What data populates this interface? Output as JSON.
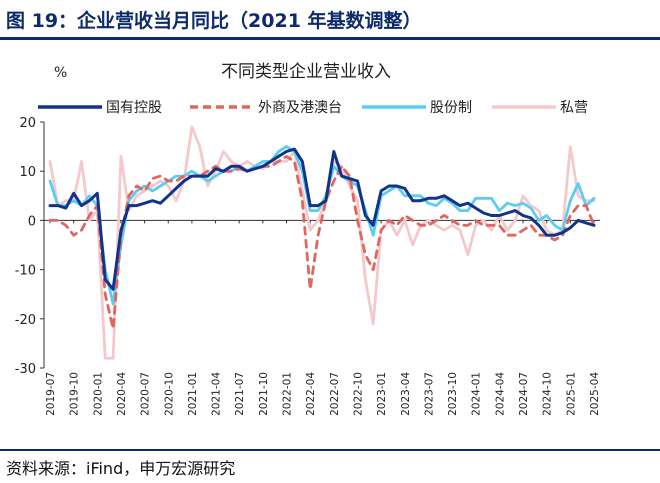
{
  "header": {
    "title": "图 19：企业营收当月同比（2021 年基数调整）"
  },
  "footer": {
    "source": "资料来源：iFind，申万宏源研究"
  },
  "chart_data": {
    "type": "line",
    "title": "不同类型企业营业收入",
    "ylabel": "%",
    "ylim": [
      -30,
      20
    ],
    "yticks": [
      20,
      10,
      0,
      -10,
      -20,
      -30
    ],
    "grid": false,
    "legend_position": "top",
    "x": [
      "2019-07",
      "2019-08",
      "2019-09",
      "2019-10",
      "2019-11",
      "2019-12",
      "2020-01",
      "2020-02",
      "2020-03",
      "2020-04",
      "2020-05",
      "2020-06",
      "2020-07",
      "2020-08",
      "2020-09",
      "2020-10",
      "2020-11",
      "2020-12",
      "2021-01",
      "2021-02",
      "2021-03",
      "2021-04",
      "2021-05",
      "2021-06",
      "2021-07",
      "2021-08",
      "2021-09",
      "2021-10",
      "2021-11",
      "2021-12",
      "2022-01",
      "2022-02",
      "2022-03",
      "2022-04",
      "2022-05",
      "2022-06",
      "2022-07",
      "2022-08",
      "2022-09",
      "2022-10",
      "2022-11",
      "2022-12",
      "2023-01",
      "2023-02",
      "2023-03",
      "2023-04",
      "2023-05",
      "2023-06",
      "2023-07",
      "2023-08",
      "2023-09",
      "2023-10",
      "2023-11",
      "2023-12",
      "2024-01",
      "2024-02",
      "2024-03",
      "2024-04",
      "2024-05",
      "2024-06",
      "2024-07",
      "2024-08",
      "2024-09",
      "2024-10",
      "2024-11",
      "2024-12",
      "2025-01",
      "2025-02",
      "2025-03",
      "2025-04"
    ],
    "xticks": [
      "2019-07",
      "2019-10",
      "2020-01",
      "2020-04",
      "2020-07",
      "2020-10",
      "2021-01",
      "2021-04",
      "2021-07",
      "2021-10",
      "2022-01",
      "2022-04",
      "2022-07",
      "2022-10",
      "2023-01",
      "2023-04",
      "2023-07",
      "2023-10",
      "2024-01",
      "2024-04",
      "2024-07",
      "2024-10",
      "2025-01",
      "2025-04"
    ],
    "series": [
      {
        "name": "国有控股",
        "color": "#12338a",
        "dash": "solid",
        "values": [
          3,
          3,
          2.5,
          5.5,
          3,
          4,
          5.5,
          -12,
          -14,
          -2,
          3,
          3,
          3.5,
          4,
          3.5,
          5,
          6.5,
          8,
          9,
          9,
          9,
          10.5,
          10,
          11,
          11,
          10,
          10.5,
          11,
          12,
          13,
          14,
          14.5,
          12,
          3,
          3,
          4,
          14,
          9,
          8.5,
          8,
          1,
          -1,
          6,
          7,
          7,
          6.5,
          4,
          4,
          4.5,
          4.5,
          5,
          4,
          3,
          3.5,
          2.5,
          1.5,
          1,
          1,
          1.5,
          2,
          1,
          0.5,
          -1,
          -3,
          -3,
          -2.5,
          -1.5,
          0,
          -0.5,
          -1
        ]
      },
      {
        "name": "外商及港澳台",
        "color": "#e06660",
        "dash": "dashed",
        "values": [
          0,
          0,
          -1,
          -3,
          -2,
          1,
          3,
          -15,
          -22,
          -3,
          5,
          7,
          6,
          8.5,
          9,
          8,
          8,
          9,
          9,
          9,
          10,
          11,
          10,
          10,
          10.5,
          10,
          10.5,
          11,
          11,
          12,
          13,
          12,
          4,
          -14,
          -3,
          4,
          8,
          11,
          9,
          0,
          -7,
          -10,
          -2,
          0,
          -1,
          1,
          0,
          -1,
          -1,
          0,
          1,
          0,
          -1,
          -1,
          0,
          -1,
          -1,
          -1,
          -3,
          -3,
          -2,
          -1,
          -3,
          -3,
          -4,
          -3,
          1,
          3,
          3,
          -1
        ]
      },
      {
        "name": "股份制",
        "color": "#5ccdf0",
        "dash": "solid",
        "values": [
          8,
          3,
          3,
          4,
          3,
          5,
          3,
          -10,
          -17,
          -5,
          4,
          6,
          7,
          6,
          7,
          8,
          9,
          9,
          10,
          9,
          8,
          9,
          10,
          10,
          11,
          10,
          11,
          12,
          12,
          14,
          15,
          14,
          10,
          2,
          2,
          5,
          11,
          9,
          8,
          7,
          2,
          -3,
          5,
          6,
          7,
          5,
          5,
          5,
          3.5,
          3,
          4.5,
          3.5,
          2,
          2,
          4.5,
          4.5,
          4.5,
          2,
          3.5,
          3,
          3.5,
          2.5,
          0,
          1,
          -1,
          -2,
          4,
          7.5,
          3,
          4.5
        ]
      },
      {
        "name": "私营",
        "color": "#f5c8cc",
        "dash": "solid",
        "values": [
          12,
          3,
          4,
          4,
          12,
          0,
          2,
          -28,
          -28,
          13,
          2,
          5,
          6,
          7,
          8,
          7,
          4,
          8,
          19,
          15,
          7,
          10,
          14,
          12,
          11,
          12,
          11,
          10.5,
          12,
          12,
          12,
          14,
          6,
          -2,
          0,
          4,
          12,
          11,
          7,
          4,
          -12,
          -21,
          -2,
          0,
          -3,
          0,
          -5,
          -1,
          0,
          -1,
          -2,
          -1,
          -2,
          -7,
          -1,
          0,
          -2,
          1,
          -2,
          0,
          5,
          3,
          2,
          -2,
          -3,
          -2,
          15,
          5,
          4,
          4
        ]
      }
    ]
  }
}
